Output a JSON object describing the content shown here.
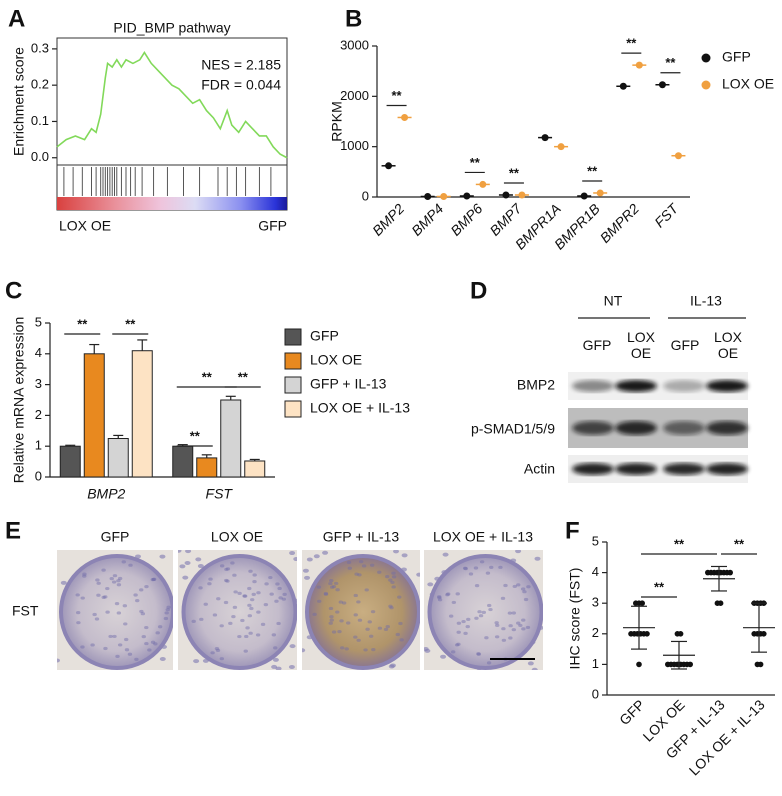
{
  "chart_data": [
    {
      "panel": "A",
      "type": "line",
      "title": "PID_BMP pathway",
      "y_label": "Enrichment score",
      "x": [
        0,
        4,
        8,
        12,
        15,
        17,
        19,
        21,
        22,
        24,
        26,
        28,
        30,
        33,
        36,
        38,
        41,
        44,
        47,
        50,
        53,
        56,
        59,
        62,
        65,
        68,
        71,
        74,
        76,
        79,
        82,
        85,
        88,
        91,
        94,
        97,
        100
      ],
      "values": [
        0.03,
        0.05,
        0.06,
        0.05,
        0.08,
        0.07,
        0.12,
        0.22,
        0.26,
        0.25,
        0.27,
        0.25,
        0.27,
        0.26,
        0.27,
        0.29,
        0.26,
        0.24,
        0.22,
        0.2,
        0.19,
        0.17,
        0.15,
        0.16,
        0.13,
        0.11,
        0.08,
        0.13,
        0.09,
        0.07,
        0.1,
        0.08,
        0.06,
        0.06,
        0.03,
        0.01,
        0.0
      ],
      "color": "#82d95a",
      "xlim": [
        0,
        100
      ],
      "ylim": [
        -0.02,
        0.33
      ],
      "yticks": [
        {
          "value": 0,
          "label": "0.0"
        },
        0.1,
        0.2,
        0.3
      ],
      "annotations": [
        "NES = 2.185",
        "FDR = 0.044"
      ],
      "hits": [
        3,
        7,
        11,
        15,
        17,
        19,
        20,
        21,
        22,
        23,
        24,
        25,
        26,
        28,
        30,
        32,
        34,
        37,
        42,
        48,
        55,
        62,
        70,
        74,
        78,
        82,
        88,
        93
      ],
      "phenotype_labels": [
        "LOX OE",
        "GFP"
      ]
    },
    {
      "panel": "B",
      "type": "scatter",
      "y_label": "RPKM",
      "categories": [
        "BMP2",
        "BMP4",
        "BMP6",
        "BMP7",
        "BMPR1A",
        "BMPR1B",
        "BMPR2",
        "FST"
      ],
      "series": [
        {
          "name": "GFP",
          "color": "#111111",
          "values": [
            620,
            10,
            20,
            40,
            1180,
            20,
            2200,
            2230
          ]
        },
        {
          "name": "LOX OE",
          "color": "#f0a040",
          "values": [
            1580,
            10,
            250,
            40,
            1000,
            80,
            2620,
            820
          ]
        }
      ],
      "ylim": [
        0,
        3000
      ],
      "yticks": [
        0,
        1000,
        2000,
        3000
      ],
      "significance": [
        "**",
        null,
        "**",
        "**",
        null,
        "**",
        "**",
        "**"
      ],
      "legend": "right"
    },
    {
      "panel": "C",
      "type": "bar",
      "y_label": "Relative mRNA expression",
      "categories": [
        "BMP2",
        "FST"
      ],
      "series": [
        {
          "name": "GFP",
          "color": "#555555",
          "values": [
            1.0,
            1.0
          ],
          "errors": [
            0.03,
            0.05
          ]
        },
        {
          "name": "LOX OE",
          "color": "#e8891f",
          "values": [
            4.0,
            0.62
          ],
          "errors": [
            0.3,
            0.1
          ]
        },
        {
          "name": "GFP + IL-13",
          "color": "#d4d4d4",
          "values": [
            1.25,
            2.5
          ],
          "errors": [
            0.1,
            0.12
          ]
        },
        {
          "name": "LOX OE + IL-13",
          "color": "#fde3c4",
          "values": [
            4.1,
            0.52
          ],
          "errors": [
            0.35,
            0.05
          ]
        }
      ],
      "ylim": [
        0,
        5
      ],
      "yticks": [
        0,
        1,
        2,
        3,
        4,
        5
      ],
      "significance": [
        "**",
        "**",
        "**",
        "**",
        "**"
      ],
      "legend": "right"
    },
    {
      "panel": "F",
      "type": "dot",
      "y_label": "IHC score (FST)",
      "categories": [
        "GFP",
        "LOX OE",
        "GFP + IL-13",
        "LOX OE + IL-13"
      ],
      "points": [
        [
          3,
          3,
          3,
          2,
          2,
          2,
          2,
          2,
          2,
          1
        ],
        [
          2,
          2,
          1,
          1,
          1,
          1,
          1,
          1,
          1,
          1
        ],
        [
          4,
          4,
          4,
          4,
          4,
          4,
          4,
          4,
          3,
          3
        ],
        [
          3,
          3,
          3,
          3,
          2,
          2,
          2,
          2,
          1,
          1
        ]
      ],
      "values": [
        2.2,
        1.3,
        3.8,
        2.2
      ],
      "errors": [
        0.7,
        0.45,
        0.4,
        0.8
      ],
      "ylim": [
        0,
        5
      ],
      "yticks": [
        0,
        1,
        2,
        3,
        4,
        5
      ],
      "significance": [
        "**",
        "**",
        "**"
      ]
    }
  ],
  "blot": {
    "panel": "D",
    "groups": [
      "NT",
      "IL-13"
    ],
    "lanes": [
      "GFP",
      "LOX OE",
      "GFP",
      "LOX OE"
    ],
    "rows": [
      "BMP2",
      "p-SMAD1/5/9",
      "Actin"
    ]
  },
  "histology": {
    "panel": "E",
    "columns": [
      "GFP",
      "LOX OE",
      "GFP + IL-13",
      "LOX OE + IL-13"
    ],
    "rows": [
      "FST"
    ]
  }
}
